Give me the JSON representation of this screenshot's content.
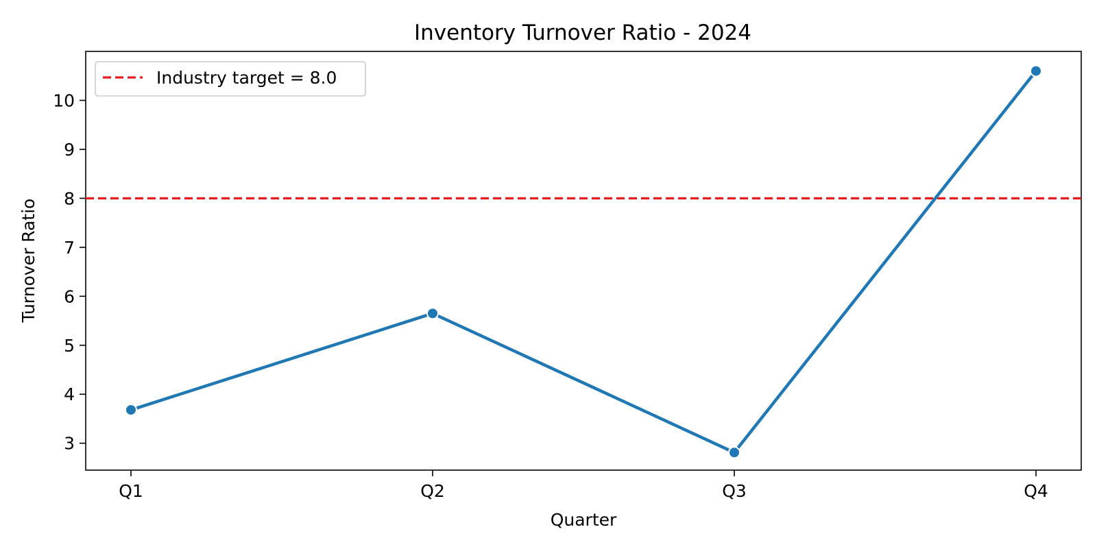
{
  "chart_data": {
    "type": "line",
    "title": "Inventory Turnover Ratio - 2024",
    "xlabel": "Quarter",
    "ylabel": "Turnover Ratio",
    "categories": [
      "Q1",
      "Q2",
      "Q3",
      "Q4"
    ],
    "series": [
      {
        "values": [
          3.68,
          5.65,
          2.81,
          10.6
        ],
        "color": "#1f77b4"
      }
    ],
    "reference_line": {
      "label": "Industry target = 8.0",
      "value": 8.0,
      "color": "#e41a1c",
      "style": "dashed"
    },
    "y_ticks": [
      3,
      4,
      5,
      6,
      7,
      8,
      9,
      10
    ],
    "ylim": [
      2.45,
      11.0
    ],
    "grid": false,
    "legend_position": "top-left"
  }
}
